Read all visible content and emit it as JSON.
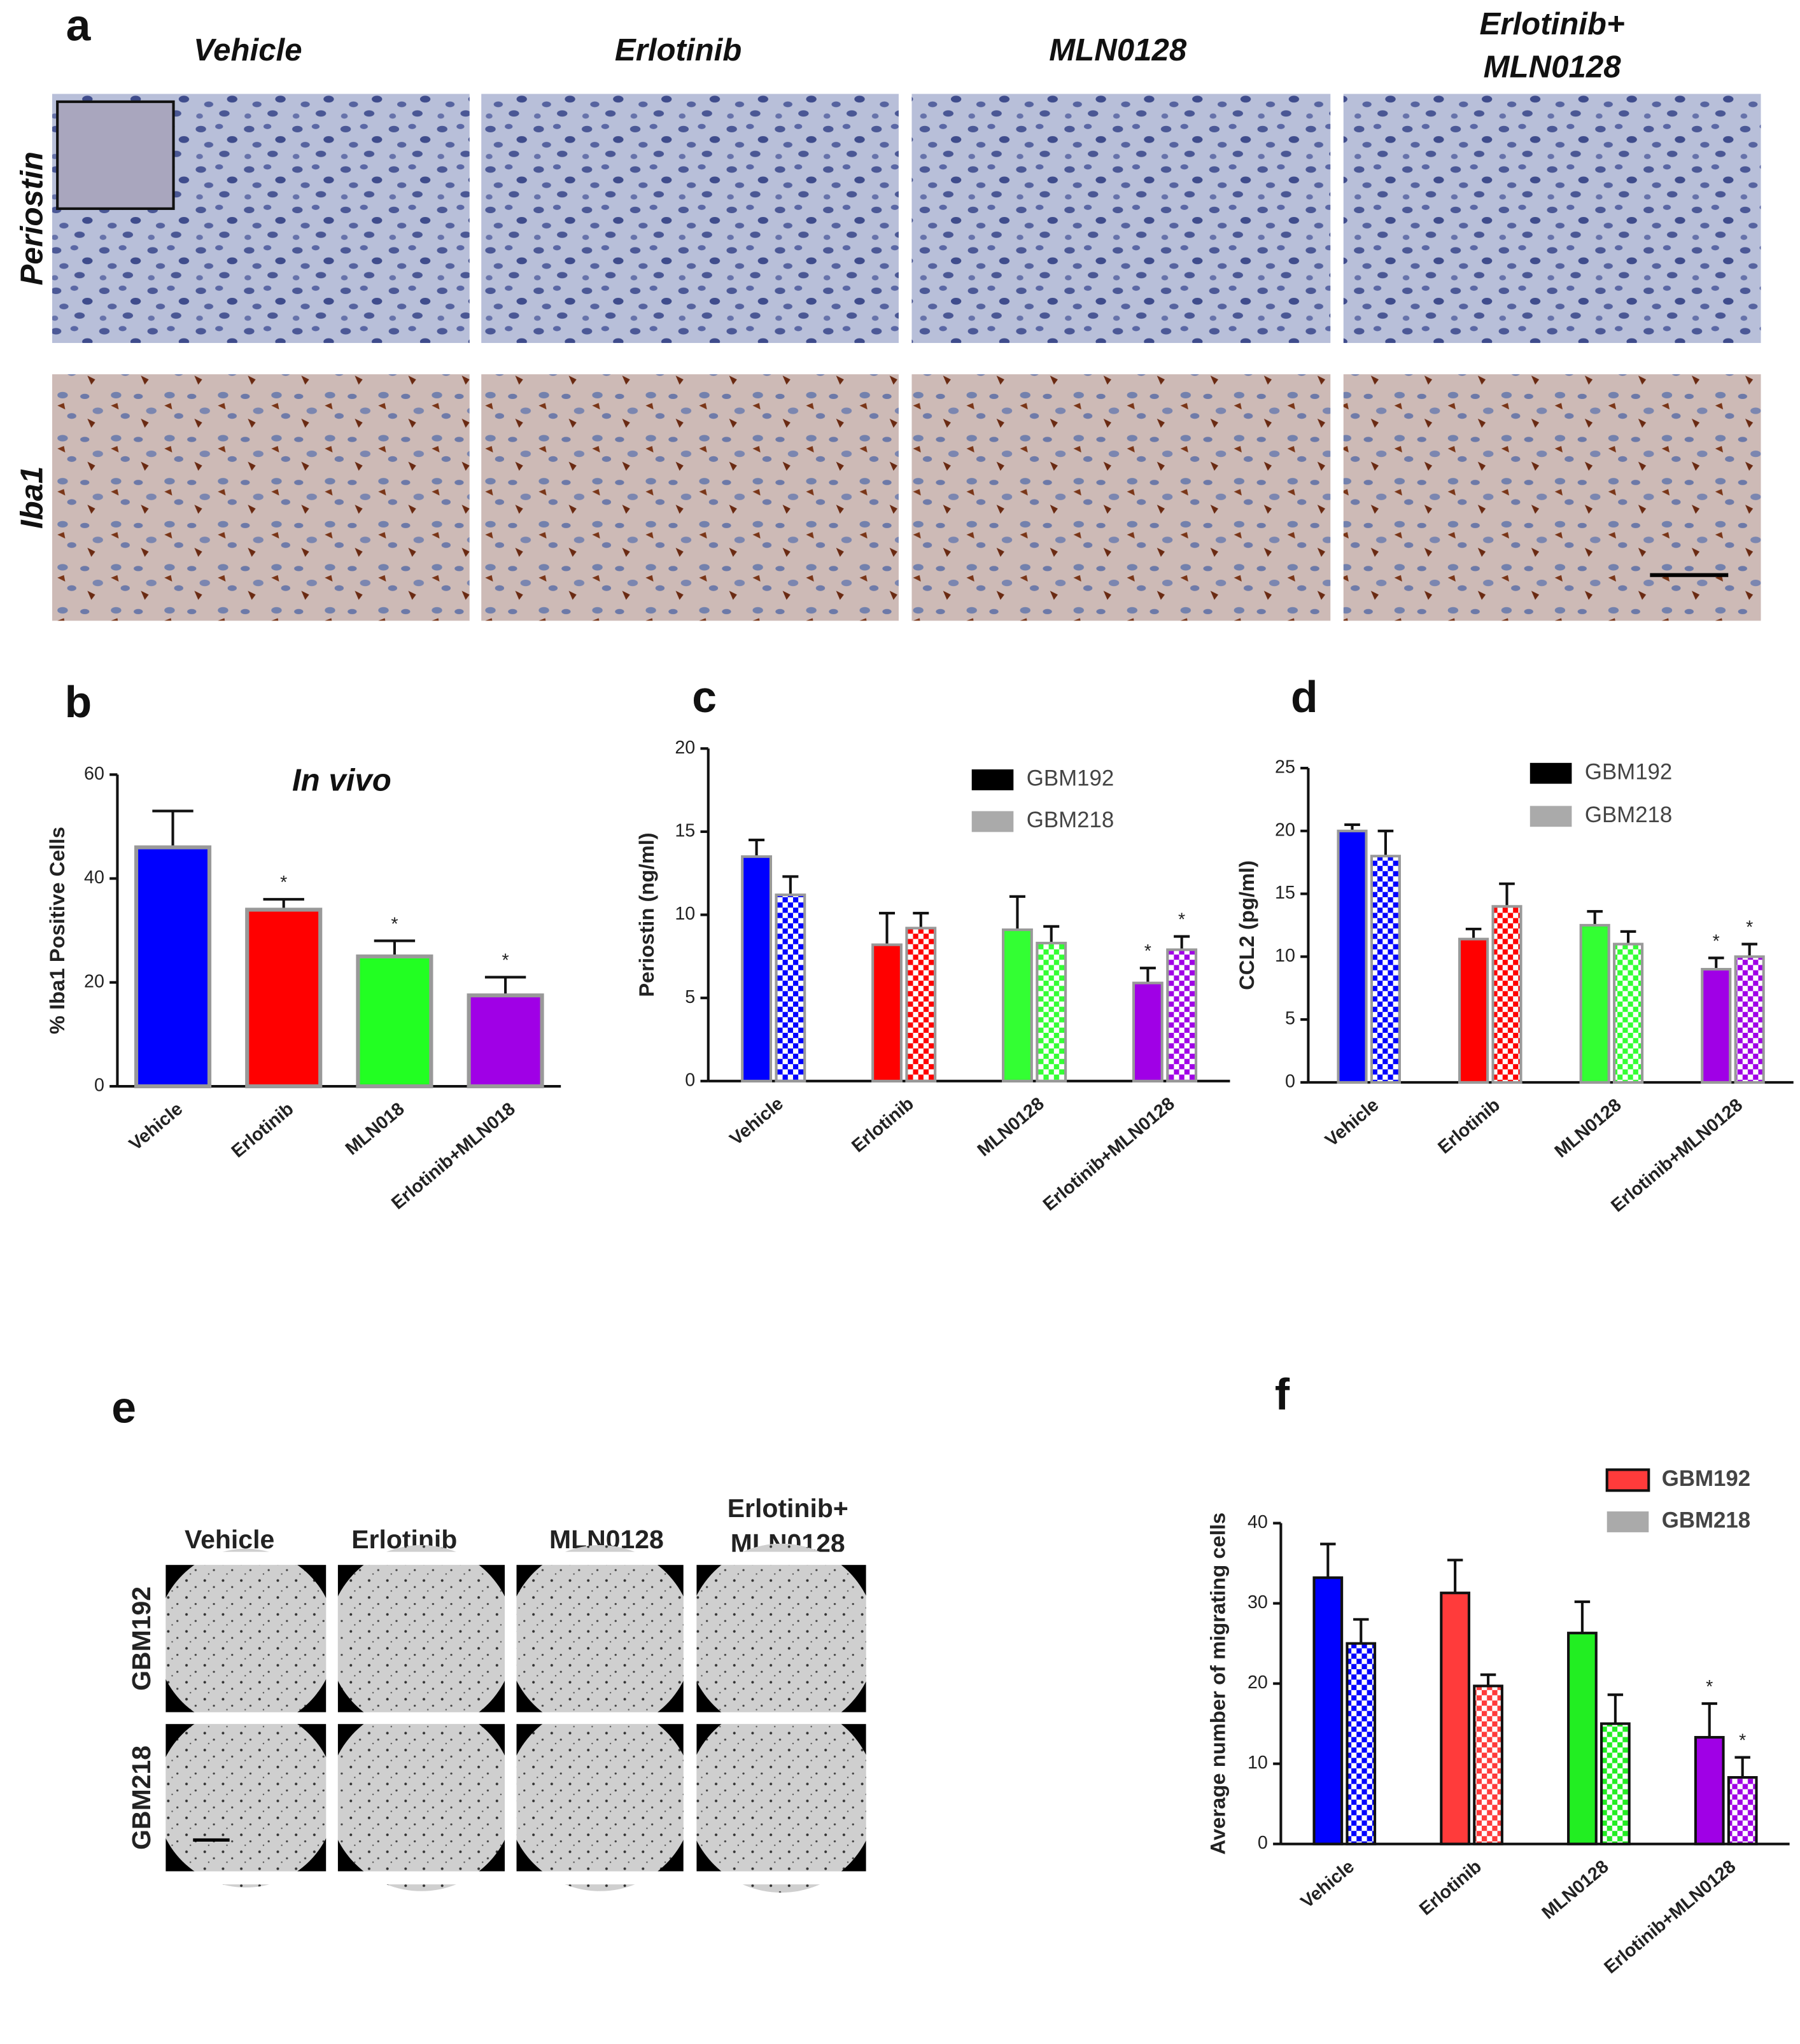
{
  "panel_labels": [
    "a",
    "b",
    "c",
    "d",
    "e",
    "f"
  ],
  "panel_a": {
    "columns": [
      [
        "Vehicle"
      ],
      [
        "Erlotinib"
      ],
      [
        "MLN0128"
      ],
      [
        "Erlotinib+",
        "MLN0128"
      ]
    ],
    "rows": [
      "Periostin",
      "Iba1"
    ]
  },
  "panel_e": {
    "columns": [
      [
        "Vehicle"
      ],
      [
        "Erlotinib"
      ],
      [
        "MLN0128"
      ],
      [
        "Erlotinib+",
        "MLN0128"
      ]
    ],
    "rows": [
      "GBM192",
      "GBM218"
    ]
  },
  "chart_data": [
    {
      "type": "bar",
      "title": "In vivo",
      "y_label": "% Iba1 Positive Cells",
      "categories": [
        "Vehicle",
        "Erlotinib",
        "MLN018",
        "Erlotinib+MLN018"
      ],
      "values": [
        46,
        34,
        25,
        17.5
      ],
      "errors": [
        7,
        2,
        3,
        3.5
      ],
      "significance": [
        null,
        "*",
        "*",
        "*"
      ],
      "colors": [
        "#0000ff",
        "#ff0000",
        "#22ff22",
        "#a000e6"
      ],
      "ylim": [
        0,
        60
      ],
      "yticks": [
        0,
        20,
        40,
        60
      ]
    },
    {
      "type": "grouped_bar",
      "y_label": "Periostin (ng/ml)",
      "categories": [
        "Vehicle",
        "Erlotinib",
        "MLN0128",
        "Erlotinib+MLN0128"
      ],
      "category_colors": [
        "#0000ff",
        "#ff0000",
        "#33ff33",
        "#a000e6"
      ],
      "series": [
        {
          "name": "GBM192",
          "color": "#000000",
          "values": [
            13.5,
            8.2,
            9.1,
            5.9
          ],
          "errors": [
            1,
            1.9,
            2,
            0.9
          ],
          "significance": [
            null,
            null,
            null,
            "*"
          ]
        },
        {
          "name": "GBM218",
          "color": "#aaaaaa",
          "values": [
            11.2,
            9.2,
            8.3,
            7.9
          ],
          "errors": [
            1.1,
            0.9,
            1,
            0.8
          ],
          "significance": [
            null,
            null,
            null,
            "*"
          ]
        }
      ],
      "ylim": [
        0,
        20
      ],
      "yticks": [
        0,
        5,
        10,
        15,
        20
      ]
    },
    {
      "type": "grouped_bar",
      "y_label": "CCL2 (pg/ml)",
      "categories": [
        "Vehicle",
        "Erlotinib",
        "MLN0128",
        "Erlotinib+MLN0128"
      ],
      "category_colors": [
        "#0000ff",
        "#ff0000",
        "#33ff33",
        "#a000e6"
      ],
      "series": [
        {
          "name": "GBM192",
          "color": "#000000",
          "values": [
            20,
            11.4,
            12.5,
            9
          ],
          "errors": [
            0.5,
            0.8,
            1.1,
            0.9
          ],
          "significance": [
            null,
            null,
            null,
            "*"
          ]
        },
        {
          "name": "GBM218",
          "color": "#aaaaaa",
          "values": [
            18,
            14,
            11,
            10
          ],
          "errors": [
            2,
            1.8,
            1,
            1
          ],
          "significance": [
            null,
            null,
            null,
            "*"
          ]
        }
      ],
      "ylim": [
        0,
        25
      ],
      "yticks": [
        0,
        5,
        10,
        15,
        20,
        25
      ]
    },
    {
      "type": "grouped_bar",
      "y_label": "Average number of migrating cells",
      "categories": [
        "Vehicle",
        "Erlotinib",
        "MLN0128",
        "Erlotinib+MLN0128"
      ],
      "category_colors": [
        "#0000ff",
        "#ff3b3b",
        "#22ee22",
        "#a000e6"
      ],
      "series": [
        {
          "name": "GBM192",
          "color": "#ff3b3b",
          "values": [
            33.2,
            31.3,
            26.3,
            13.3
          ],
          "errors": [
            4.2,
            4.1,
            3.9,
            4.2
          ],
          "significance": [
            null,
            null,
            null,
            "*"
          ]
        },
        {
          "name": "GBM218",
          "color": "#aaaaaa",
          "values": [
            25,
            19.7,
            15,
            8.3
          ],
          "errors": [
            3,
            1.4,
            3.6,
            2.5
          ],
          "significance": [
            null,
            null,
            null,
            "*"
          ]
        }
      ],
      "ylim": [
        0,
        40
      ],
      "yticks": [
        0,
        10,
        20,
        30,
        40
      ]
    }
  ]
}
